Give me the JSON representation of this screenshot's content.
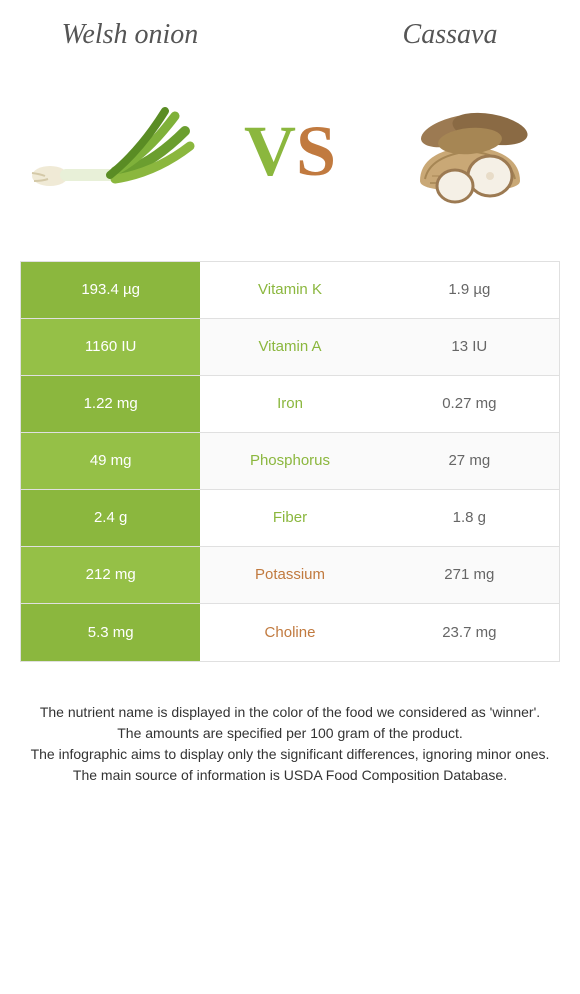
{
  "food_left": {
    "name": "Welsh onion",
    "color": "#8bb73e",
    "color_alt": "#7da935"
  },
  "food_right": {
    "name": "Cassava",
    "color": "#c17a3f"
  },
  "vs": {
    "v": "V",
    "s": "S"
  },
  "table": {
    "left_bg_colors": [
      "#8bb73e",
      "#95c047",
      "#8bb73e",
      "#95c047",
      "#8bb73e",
      "#95c047",
      "#8bb73e"
    ],
    "rows": [
      {
        "nutrient": "Vitamin K",
        "left": "193.4 µg",
        "right": "1.9 µg",
        "winner": "left"
      },
      {
        "nutrient": "Vitamin A",
        "left": "1160 IU",
        "right": "13 IU",
        "winner": "left"
      },
      {
        "nutrient": "Iron",
        "left": "1.22 mg",
        "right": "0.27 mg",
        "winner": "left"
      },
      {
        "nutrient": "Phosphorus",
        "left": "49 mg",
        "right": "27 mg",
        "winner": "left"
      },
      {
        "nutrient": "Fiber",
        "left": "2.4 g",
        "right": "1.8 g",
        "winner": "left"
      },
      {
        "nutrient": "Potassium",
        "left": "212 mg",
        "right": "271 mg",
        "winner": "right"
      },
      {
        "nutrient": "Choline",
        "left": "5.3 mg",
        "right": "23.7 mg",
        "winner": "right"
      }
    ]
  },
  "footnotes": [
    "The nutrient name is displayed in the color of the food we considered as 'winner'.",
    "The amounts are specified per 100 gram of the product.",
    "The infographic aims to display only the significant differences, ignoring minor ones.",
    "The main source of information is USDA Food Composition Database."
  ],
  "colors": {
    "left_winner": "#8bb73e",
    "right_winner": "#c17a3f",
    "text": "#333333",
    "border": "#e0e0e0"
  }
}
